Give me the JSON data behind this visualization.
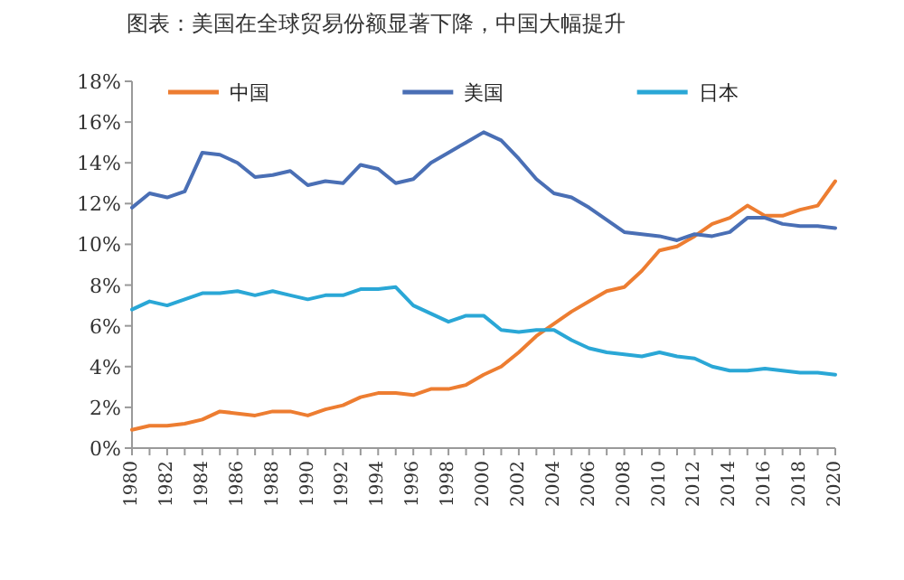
{
  "chart_data": {
    "type": "line",
    "title": "图表：美国在全球贸易份额显著下降，中国大幅提升",
    "x": [
      1980,
      1981,
      1982,
      1983,
      1984,
      1985,
      1986,
      1987,
      1988,
      1989,
      1990,
      1991,
      1992,
      1993,
      1994,
      1995,
      1996,
      1997,
      1998,
      1999,
      2000,
      2001,
      2002,
      2003,
      2004,
      2005,
      2006,
      2007,
      2008,
      2009,
      2010,
      2011,
      2012,
      2013,
      2014,
      2015,
      2016,
      2017,
      2018,
      2019,
      2020
    ],
    "series": [
      {
        "name": "中国",
        "color": "#ed7d31",
        "values": [
          0.9,
          1.1,
          1.1,
          1.2,
          1.4,
          1.8,
          1.7,
          1.6,
          1.8,
          1.8,
          1.6,
          1.9,
          2.1,
          2.5,
          2.7,
          2.7,
          2.6,
          2.9,
          2.9,
          3.1,
          3.6,
          4.0,
          4.7,
          5.5,
          6.1,
          6.7,
          7.2,
          7.7,
          7.9,
          8.7,
          9.7,
          9.9,
          10.4,
          11.0,
          11.3,
          11.9,
          11.4,
          11.4,
          11.7,
          11.9,
          13.1
        ]
      },
      {
        "name": "美国",
        "color": "#4a6fb5",
        "values": [
          11.8,
          12.5,
          12.3,
          12.6,
          14.5,
          14.4,
          14.0,
          13.3,
          13.4,
          13.6,
          12.9,
          13.1,
          13.0,
          13.9,
          13.7,
          13.0,
          13.2,
          14.0,
          14.5,
          15.0,
          15.5,
          15.1,
          14.2,
          13.2,
          12.5,
          12.3,
          11.8,
          11.2,
          10.6,
          10.5,
          10.4,
          10.2,
          10.5,
          10.4,
          10.6,
          11.3,
          11.3,
          11.0,
          10.9,
          10.9,
          10.8
        ]
      },
      {
        "name": "日本",
        "color": "#2aa7d6",
        "values": [
          6.8,
          7.2,
          7.0,
          7.3,
          7.6,
          7.6,
          7.7,
          7.5,
          7.7,
          7.5,
          7.3,
          7.5,
          7.5,
          7.8,
          7.8,
          7.9,
          7.0,
          6.6,
          6.2,
          6.5,
          6.5,
          5.8,
          5.7,
          5.8,
          5.8,
          5.3,
          4.9,
          4.7,
          4.6,
          4.5,
          4.7,
          4.5,
          4.4,
          4.0,
          3.8,
          3.8,
          3.9,
          3.8,
          3.7,
          3.7,
          3.6
        ]
      }
    ],
    "xlim": [
      1980,
      2020
    ],
    "xticks": [
      1980,
      {
        "value": 1981,
        "label": null
      },
      1982,
      {
        "value": 1983,
        "label": null
      },
      1984,
      {
        "value": 1985,
        "label": null
      },
      1986,
      {
        "value": 1987,
        "label": null
      },
      1988,
      {
        "value": 1989,
        "label": null
      },
      1990,
      {
        "value": 1991,
        "label": null
      },
      1992,
      {
        "value": 1993,
        "label": null
      },
      1994,
      {
        "value": 1995,
        "label": null
      },
      1996,
      {
        "value": 1997,
        "label": null
      },
      1998,
      {
        "value": 1999,
        "label": null
      },
      2000,
      {
        "value": 2001,
        "label": null
      },
      2002,
      {
        "value": 2003,
        "label": null
      },
      2004,
      {
        "value": 2005,
        "label": null
      },
      2006,
      {
        "value": 2007,
        "label": null
      },
      2008,
      {
        "value": 2009,
        "label": null
      },
      2010,
      {
        "value": 2011,
        "label": null
      },
      2012,
      {
        "value": 2013,
        "label": null
      },
      2014,
      {
        "value": 2015,
        "label": null
      },
      2016,
      {
        "value": 2017,
        "label": null
      },
      2018,
      {
        "value": 2019,
        "label": null
      },
      2020
    ],
    "ylim": [
      0,
      18
    ],
    "yticks": [
      {
        "value": 0,
        "label": "0%"
      },
      {
        "value": 2,
        "label": "2%"
      },
      {
        "value": 4,
        "label": "4%"
      },
      {
        "value": 6,
        "label": "6%"
      },
      {
        "value": 8,
        "label": "8%"
      },
      {
        "value": 10,
        "label": "10%"
      },
      {
        "value": 12,
        "label": "12%"
      },
      {
        "value": 14,
        "label": "14%"
      },
      {
        "value": 16,
        "label": "16%"
      },
      {
        "value": 18,
        "label": "18%"
      }
    ],
    "legend": "top",
    "grid": false,
    "marker": "none",
    "line_style": "solid"
  }
}
